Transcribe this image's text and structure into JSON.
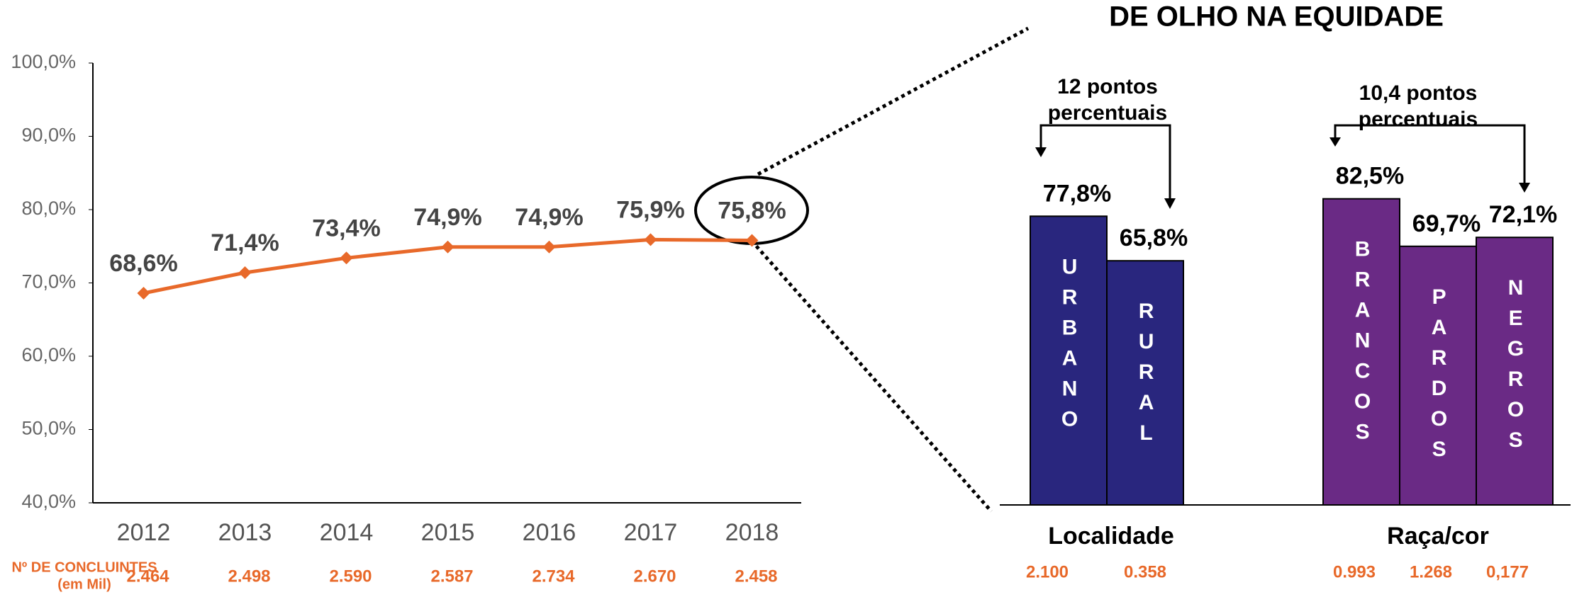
{
  "chart_data": [
    {
      "type": "line",
      "categories": [
        "2012",
        "2013",
        "2014",
        "2015",
        "2016",
        "2017",
        "2018"
      ],
      "values": [
        68.6,
        71.4,
        73.4,
        74.9,
        74.9,
        75.9,
        75.8
      ],
      "value_labels": [
        "68,6%",
        "71,4%",
        "73,4%",
        "74,9%",
        "74,9%",
        "75,9%",
        "75,8%"
      ],
      "color": "#e8692a",
      "ylim": [
        40,
        100
      ],
      "yticks": [
        {
          "value": 40,
          "label": "40,0%"
        },
        {
          "value": 50,
          "label": "50,0%"
        },
        {
          "value": 60,
          "label": "60,0%"
        },
        {
          "value": 70,
          "label": "70,0%"
        },
        {
          "value": 80,
          "label": "80,0%"
        },
        {
          "value": 90,
          "label": "90,0%"
        },
        {
          "value": 100,
          "label": "100,0%"
        }
      ],
      "completers": {
        "label": "Nº DE CONCLUINTES",
        "sublabel": "(em Mil)",
        "values": [
          "2.464",
          "2.498",
          "2.590",
          "2.587",
          "2.734",
          "2.670",
          "2.458"
        ]
      }
    },
    {
      "type": "bar",
      "title": "DE OLHO NA EQUIDADE",
      "ylim": [
        0,
        100
      ],
      "groups": [
        {
          "name": "Localidade",
          "color": "#29267e",
          "categories": [
            "URBANO",
            "RURAL"
          ],
          "values": [
            77.8,
            65.8
          ],
          "value_labels": [
            "77,8%",
            "65,8%"
          ],
          "counts": [
            "2.100",
            "0.358"
          ],
          "annotation": [
            "12 pontos",
            "percentuais"
          ]
        },
        {
          "name": "Raça/cor",
          "color": "#6a2a85",
          "categories": [
            "BRANCOS",
            "PARDOS",
            "NEGROS"
          ],
          "values": [
            82.5,
            69.7,
            72.1
          ],
          "value_labels": [
            "82,5%",
            "69,7%",
            "72,1%"
          ],
          "counts": [
            "0.993",
            "1.268",
            "0,177"
          ],
          "annotation": [
            "10,4 pontos",
            "percentuais"
          ]
        }
      ]
    }
  ]
}
